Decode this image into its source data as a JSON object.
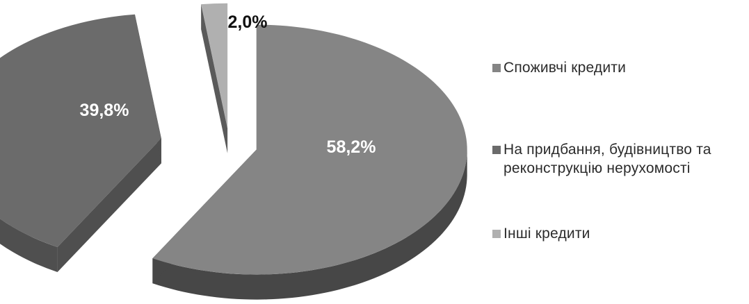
{
  "chart_data": {
    "type": "pie",
    "title": "",
    "slices": [
      {
        "label": "Споживчі кредити",
        "value": 58.2,
        "value_label": "58,2%",
        "color": "#858585",
        "side_color": "#474747"
      },
      {
        "label": "На придбання, будівництво та\nреконструкцію нерухомості",
        "value": 39.8,
        "value_label": "39,8%",
        "color": "#6b6b6b",
        "side_color": "#4f4f4f"
      },
      {
        "label": "Інші кредити",
        "value": 2.0,
        "value_label": "2,0%",
        "color": "#b0b0b0",
        "side_color": "#5a5a5a"
      }
    ],
    "legend_position": "right",
    "style": "3d-exploded"
  }
}
